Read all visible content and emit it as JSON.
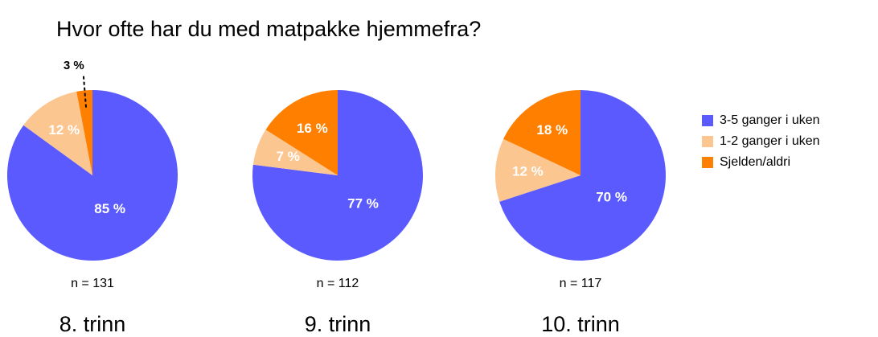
{
  "title": "Hvor ofte har du med matpakke hjemmefra?",
  "chart_data": [
    {
      "type": "pie",
      "subtitle": "8. trinn",
      "n": "n = 131",
      "categories": [
        "3-5 ganger i uken",
        "1-2 ganger i uken",
        "Sjelden/aldri"
      ],
      "values": [
        85,
        12,
        3
      ],
      "value_labels": [
        "85 %",
        "12 %",
        "3 %"
      ],
      "colors": [
        "#5a5aff",
        "#fbc690",
        "#ff8000"
      ]
    },
    {
      "type": "pie",
      "subtitle": "9. trinn",
      "n": "n = 112",
      "categories": [
        "3-5 ganger i uken",
        "1-2 ganger i uken",
        "Sjelden/aldri"
      ],
      "values": [
        77,
        7,
        16
      ],
      "value_labels": [
        "77 %",
        "7 %",
        "16 %"
      ],
      "colors": [
        "#5a5aff",
        "#fbc690",
        "#ff8000"
      ]
    },
    {
      "type": "pie",
      "subtitle": "10. trinn",
      "n": "n = 117",
      "categories": [
        "3-5 ganger i uken",
        "1-2 ganger i uken",
        "Sjelden/aldri"
      ],
      "values": [
        70,
        12,
        18
      ],
      "value_labels": [
        "70 %",
        "12 %",
        "18 %"
      ],
      "colors": [
        "#5a5aff",
        "#fbc690",
        "#ff8000"
      ]
    }
  ]
}
